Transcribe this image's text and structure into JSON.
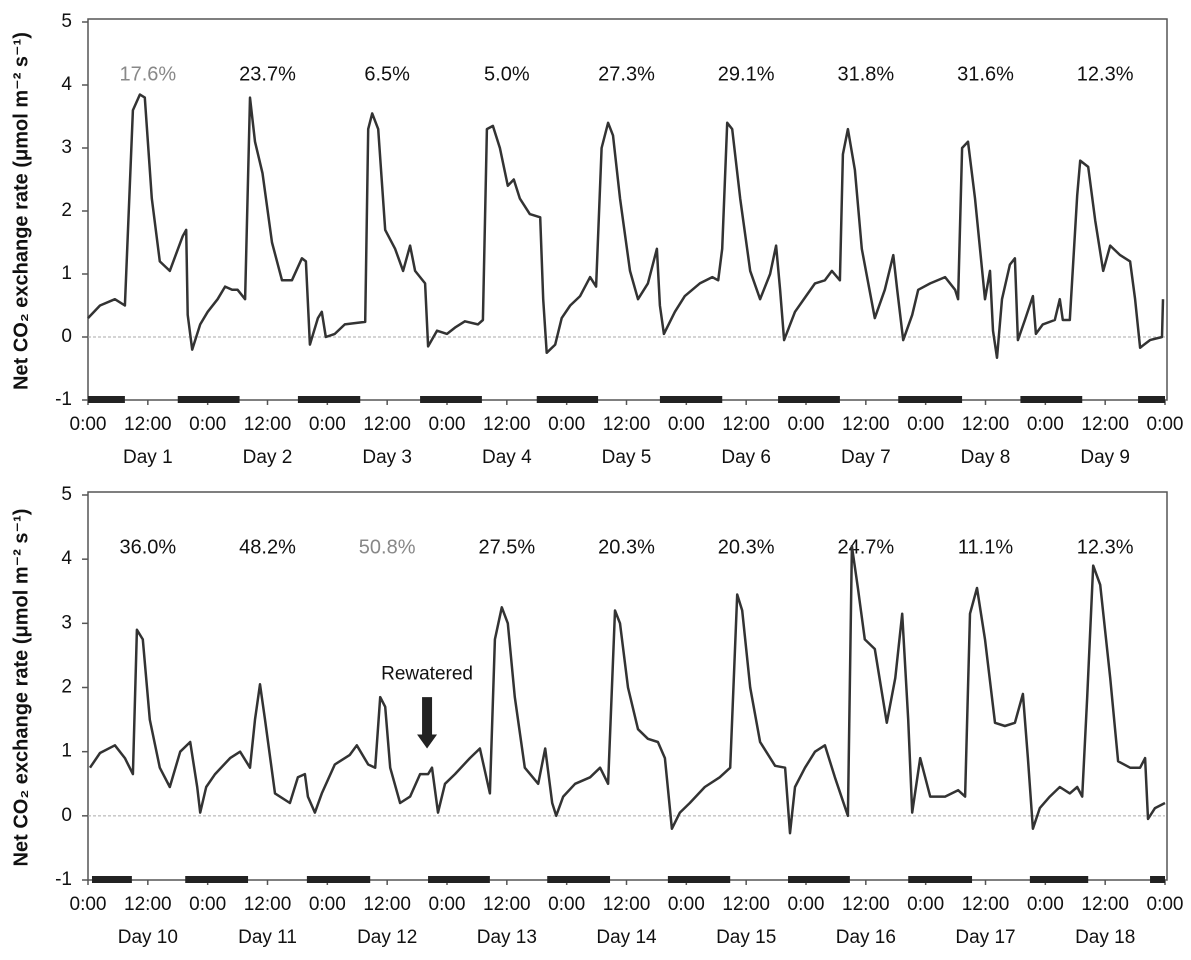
{
  "chart_data": [
    {
      "type": "line",
      "y_label": "Net CO₂ exchange rate (μmol m⁻² s⁻¹)",
      "xlim": [
        0,
        216
      ],
      "ylim": [
        -1,
        5
      ],
      "yticks": [
        -1,
        0,
        1,
        2,
        3,
        4,
        5
      ],
      "xticks": [
        {
          "value": 0,
          "label": "0:00"
        },
        {
          "value": 12,
          "label": "12:00"
        },
        {
          "value": 24,
          "label": "0:00"
        },
        {
          "value": 36,
          "label": "12:00"
        },
        {
          "value": 48,
          "label": "0:00"
        },
        {
          "value": 60,
          "label": "12:00"
        },
        {
          "value": 72,
          "label": "0:00"
        },
        {
          "value": 84,
          "label": "12:00"
        },
        {
          "value": 96,
          "label": "0:00"
        },
        {
          "value": 108,
          "label": "12:00"
        },
        {
          "value": 120,
          "label": "0:00"
        },
        {
          "value": 132,
          "label": "12:00"
        },
        {
          "value": 144,
          "label": "0:00"
        },
        {
          "value": 156,
          "label": "12:00"
        },
        {
          "value": 168,
          "label": "0:00"
        },
        {
          "value": 180,
          "label": "12:00"
        },
        {
          "value": 192,
          "label": "0:00"
        },
        {
          "value": 204,
          "label": "12:00"
        },
        {
          "value": 216,
          "label": "0:00"
        }
      ],
      "day_labels": [
        "Day 1",
        "Day 2",
        "Day 3",
        "Day 4",
        "Day 5",
        "Day 6",
        "Day 7",
        "Day 8",
        "Day 9"
      ],
      "percentages": [
        "17.6%",
        "23.7%",
        "6.5%",
        "5.0%",
        "27.3%",
        "29.1%",
        "31.8%",
        "31.6%",
        "12.3%"
      ],
      "percentage_colors": [
        "#888888",
        "#111111",
        "#111111",
        "#111111",
        "#111111",
        "#111111",
        "#111111",
        "#111111",
        "#111111"
      ],
      "dark_periods": [
        [
          0,
          7.4
        ],
        [
          18,
          30.4
        ],
        [
          42.1,
          54.6
        ],
        [
          66.6,
          79
        ],
        [
          90,
          102.3
        ],
        [
          114.7,
          127.2
        ],
        [
          138.4,
          150.8
        ],
        [
          162.5,
          175.3
        ],
        [
          187,
          199.4
        ],
        [
          210.6,
          216
        ]
      ],
      "hline": 0,
      "color": "#333333",
      "x": [
        0,
        2.4,
        5.4,
        7.4,
        9,
        10.4,
        11.4,
        12.8,
        14.4,
        16.4,
        19,
        19.7,
        20,
        20.9,
        22.5,
        24,
        26,
        27.5,
        28.9,
        30,
        31.5,
        32.5,
        33.5,
        35,
        36.9,
        38.9,
        40.9,
        42.9,
        43.7,
        44.5,
        46.1,
        46.9,
        47.7,
        49.5,
        51.5,
        53.5,
        55.6,
        56.2,
        57,
        58.2,
        59.6,
        61.6,
        63.2,
        64.6,
        65.6,
        67.6,
        68.2,
        70,
        72,
        73.6,
        75.6,
        78.2,
        79.2,
        80,
        81.2,
        82.6,
        84.2,
        85.4,
        86.6,
        88.6,
        90.7,
        91.3,
        92,
        93.7,
        95,
        96.7,
        98.7,
        100.7,
        101.9,
        103,
        104.3,
        105.3,
        106.7,
        108.7,
        110.3,
        112.3,
        114.1,
        114.7,
        115.5,
        117.7,
        119.7,
        122.7,
        125.2,
        126.4,
        127.2,
        128.2,
        129.2,
        130.8,
        132.8,
        134.8,
        136.8,
        138,
        138.8,
        139.6,
        141.8,
        144,
        145.8,
        147.8,
        149.2,
        150.8,
        151.4,
        152.4,
        153.8,
        155.2,
        157.8,
        159.8,
        161.5,
        162.3,
        163.5,
        165.3,
        166.5,
        168.9,
        171.9,
        173.9,
        174.5,
        175.3,
        176.5,
        177.9,
        179.9,
        180.9,
        181.5,
        182.3,
        183.3,
        184.9,
        185.9,
        186.5,
        187.9,
        189.5,
        190.1,
        191.5,
        193.9,
        194.9,
        195.5,
        196.9,
        198.4,
        199,
        200.6,
        202,
        203.6,
        205,
        207,
        209,
        210,
        211,
        213,
        215.4,
        215.6
      ],
      "values": [
        0.3,
        0.5,
        0.6,
        0.5,
        3.6,
        3.85,
        3.8,
        2.2,
        1.2,
        1.05,
        1.6,
        1.7,
        0.35,
        -0.2,
        0.2,
        0.4,
        0.6,
        0.8,
        0.75,
        0.75,
        0.6,
        3.8,
        3.1,
        2.6,
        1.5,
        0.9,
        0.9,
        1.25,
        1.2,
        -0.12,
        0.3,
        0.4,
        0,
        0.05,
        0.2,
        0.22,
        0.24,
        3.3,
        3.55,
        3.3,
        1.7,
        1.4,
        1.05,
        1.45,
        1.05,
        0.85,
        -0.15,
        0.1,
        0.05,
        0.15,
        0.25,
        0.2,
        0.27,
        3.3,
        3.35,
        3.0,
        2.4,
        2.5,
        2.2,
        1.95,
        1.9,
        0.6,
        -0.25,
        -0.12,
        0.3,
        0.5,
        0.65,
        0.95,
        0.8,
        3.0,
        3.4,
        3.2,
        2.2,
        1.05,
        0.6,
        0.85,
        1.4,
        0.5,
        0.05,
        0.4,
        0.65,
        0.85,
        0.95,
        0.9,
        1.4,
        3.4,
        3.3,
        2.2,
        1.05,
        0.6,
        1.0,
        1.45,
        0.75,
        -0.05,
        0.4,
        0.65,
        0.85,
        0.9,
        1.05,
        0.9,
        2.9,
        3.3,
        2.65,
        1.4,
        0.3,
        0.75,
        1.3,
        0.75,
        -0.05,
        0.35,
        0.75,
        0.85,
        0.95,
        0.75,
        0.6,
        3.0,
        3.1,
        2.2,
        0.6,
        1.05,
        0.1,
        -0.33,
        0.6,
        1.15,
        1.25,
        -0.05,
        0.27,
        0.65,
        0.05,
        0.2,
        0.27,
        0.6,
        0.27,
        0.27,
        2.25,
        2.8,
        2.7,
        1.85,
        1.05,
        1.45,
        1.3,
        1.2,
        0.6,
        -0.17,
        -0.05,
        0,
        0.6
      ]
    },
    {
      "type": "line",
      "y_label": "Net CO₂ exchange rate (μmol m⁻² s⁻¹)",
      "xlim": [
        0,
        216
      ],
      "ylim": [
        -1,
        5
      ],
      "yticks": [
        -1,
        0,
        1,
        2,
        3,
        4,
        5
      ],
      "xticks": [
        {
          "value": 0,
          "label": "0:00"
        },
        {
          "value": 12,
          "label": "12:00"
        },
        {
          "value": 24,
          "label": "0:00"
        },
        {
          "value": 36,
          "label": "12:00"
        },
        {
          "value": 48,
          "label": "0:00"
        },
        {
          "value": 60,
          "label": "12:00"
        },
        {
          "value": 72,
          "label": "0:00"
        },
        {
          "value": 84,
          "label": "12:00"
        },
        {
          "value": 96,
          "label": "0:00"
        },
        {
          "value": 108,
          "label": "12:00"
        },
        {
          "value": 120,
          "label": "0:00"
        },
        {
          "value": 132,
          "label": "12:00"
        },
        {
          "value": 144,
          "label": "0:00"
        },
        {
          "value": 156,
          "label": "12:00"
        },
        {
          "value": 168,
          "label": "0:00"
        },
        {
          "value": 180,
          "label": "12:00"
        },
        {
          "value": 192,
          "label": "0:00"
        },
        {
          "value": 204,
          "label": "12:00"
        },
        {
          "value": 216,
          "label": "0:00"
        }
      ],
      "day_labels": [
        "Day 10",
        "Day 11",
        "Day 12",
        "Day 13",
        "Day 14",
        "Day 15",
        "Day 16",
        "Day 17",
        "Day 18"
      ],
      "percentages": [
        "36.0%",
        "48.2%",
        "50.8%",
        "27.5%",
        "20.3%",
        "20.3%",
        "24.7%",
        "11.1%",
        "12.3%"
      ],
      "percentage_colors": [
        "#111111",
        "#111111",
        "#888888",
        "#111111",
        "#111111",
        "#111111",
        "#111111",
        "#111111",
        "#111111"
      ],
      "dark_periods": [
        [
          0.8,
          8.8
        ],
        [
          19.5,
          32.1
        ],
        [
          43.9,
          56.6
        ],
        [
          68.2,
          80.6
        ],
        [
          92.1,
          104.7
        ],
        [
          116.3,
          128.8
        ],
        [
          140.4,
          152.8
        ],
        [
          164.5,
          177.3
        ],
        [
          188.9,
          200.6
        ],
        [
          213,
          216
        ]
      ],
      "hline": 0,
      "color": "#333333",
      "annotation": {
        "text": "Rewatered",
        "x": 68,
        "y": 2.2,
        "arrow_from": 1.85,
        "arrow_to": 1.05
      },
      "x": [
        0.4,
        2.4,
        5.4,
        7.4,
        9,
        9.8,
        11,
        12.4,
        14.4,
        16.4,
        18.5,
        20.5,
        21.9,
        22.5,
        23.7,
        25.5,
        28.5,
        30.5,
        32.5,
        33.5,
        34.5,
        35.5,
        37.5,
        40.5,
        42.1,
        43.5,
        44.1,
        45.5,
        46.9,
        49.5,
        52.5,
        53.9,
        56.2,
        57.6,
        58.6,
        59.6,
        60.6,
        62.6,
        64.6,
        66.6,
        68.2,
        69,
        70.2,
        71.6,
        73.6,
        76.6,
        78.6,
        80.6,
        81.6,
        83,
        84.2,
        85.6,
        87.6,
        90.3,
        91.7,
        93.1,
        93.9,
        95.3,
        97.7,
        100.7,
        102.7,
        104.3,
        105.7,
        106.7,
        108.3,
        110.3,
        112.3,
        114.3,
        115.7,
        117.1,
        118.7,
        120.7,
        123.7,
        126.7,
        128.8,
        130.2,
        131.2,
        132.8,
        134.8,
        137.8,
        139.8,
        140.8,
        141.8,
        143.8,
        145.8,
        147.8,
        149.8,
        152.4,
        153.2,
        154.4,
        155.8,
        157.8,
        160.2,
        161.9,
        163.3,
        164.5,
        165.3,
        166.9,
        168.9,
        171.9,
        174.5,
        175.9,
        176.9,
        178.3,
        179.9,
        181.9,
        183.9,
        185.9,
        187.5,
        188.5,
        189.5,
        190.9,
        192.9,
        194.9,
        196.9,
        198.4,
        199.4,
        200.4,
        201.6,
        203,
        205,
        206.6,
        209,
        211,
        212,
        212.6,
        214,
        216
      ],
      "values": [
        0.75,
        0.98,
        1.1,
        0.9,
        0.65,
        2.9,
        2.75,
        1.5,
        0.75,
        0.45,
        1.0,
        1.15,
        0.45,
        0.05,
        0.45,
        0.65,
        0.9,
        1.0,
        0.75,
        1.5,
        2.05,
        1.5,
        0.35,
        0.2,
        0.6,
        0.65,
        0.3,
        0.05,
        0.35,
        0.8,
        0.95,
        1.1,
        0.8,
        0.75,
        1.85,
        1.7,
        0.75,
        0.2,
        0.3,
        0.65,
        0.65,
        0.75,
        0.05,
        0.5,
        0.65,
        0.9,
        1.05,
        0.35,
        2.75,
        3.25,
        3.0,
        1.85,
        0.75,
        0.5,
        1.05,
        0.2,
        0,
        0.3,
        0.5,
        0.6,
        0.75,
        0.5,
        3.2,
        3.0,
        2.0,
        1.35,
        1.2,
        1.15,
        0.9,
        -0.2,
        0.05,
        0.2,
        0.45,
        0.6,
        0.75,
        3.45,
        3.2,
        2.0,
        1.15,
        0.78,
        0.75,
        -0.27,
        0.45,
        0.75,
        1.0,
        1.1,
        0.6,
        0,
        4.2,
        3.55,
        2.75,
        2.6,
        1.45,
        2.15,
        3.15,
        1.5,
        0.05,
        0.9,
        0.3,
        0.3,
        0.4,
        0.3,
        3.15,
        3.55,
        2.75,
        1.45,
        1.4,
        1.45,
        1.9,
        0.9,
        -0.2,
        0.12,
        0.3,
        0.45,
        0.35,
        0.45,
        0.3,
        1.85,
        3.9,
        3.6,
        2.15,
        0.85,
        0.75,
        0.75,
        0.9,
        -0.05,
        0.12,
        0.2
      ]
    }
  ]
}
